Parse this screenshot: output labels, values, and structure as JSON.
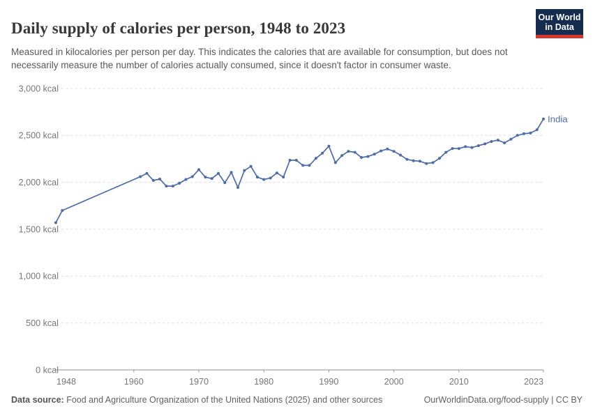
{
  "header": {
    "title": "Daily supply of calories per person, 1948 to 2023",
    "subtitle": "Measured in kilocalories per person per day. This indicates the calories that are available for consumption, but does not necessarily measure the number of calories actually consumed, since it doesn't factor in consumer waste.",
    "logo": {
      "line1": "Our World",
      "line2": "in Data"
    }
  },
  "footer": {
    "source_label": "Data source:",
    "source_text": " Food and Agriculture Organization of the United Nations (2025) and other sources",
    "link": "OurWorldinData.org/food-supply | CC BY"
  },
  "chart_data": {
    "type": "line",
    "title": "Daily supply of calories per person, 1948 to 2023",
    "xlabel": "",
    "ylabel": "",
    "xlim": [
      1948,
      2023
    ],
    "ylim": [
      0,
      3000
    ],
    "grid": "horizontal-dashed",
    "legend_position": "end-of-line",
    "unit": "kcal",
    "x_ticks": [
      {
        "value": 1948,
        "label": "1948"
      },
      {
        "value": 1960,
        "label": "1960"
      },
      {
        "value": 1970,
        "label": "1970"
      },
      {
        "value": 1980,
        "label": "1980"
      },
      {
        "value": 1990,
        "label": "1990"
      },
      {
        "value": 2000,
        "label": "2000"
      },
      {
        "value": 2010,
        "label": "2010"
      },
      {
        "value": 2023,
        "label": "2023"
      }
    ],
    "y_ticks": [
      {
        "value": 0,
        "label": "0 kcal"
      },
      {
        "value": 500,
        "label": "500 kcal"
      },
      {
        "value": 1000,
        "label": "1,000 kcal"
      },
      {
        "value": 1500,
        "label": "1,500 kcal"
      },
      {
        "value": 2000,
        "label": "2,000 kcal"
      },
      {
        "value": 2500,
        "label": "2,500 kcal"
      },
      {
        "value": 3000,
        "label": "3,000 kcal"
      }
    ],
    "interpolated_gap_years": [
      1950,
      1960
    ],
    "series": [
      {
        "name": "India",
        "color": "#4c6ba8",
        "points": [
          [
            1948,
            1570
          ],
          [
            1949,
            1700
          ],
          [
            1961,
            2060
          ],
          [
            1962,
            2095
          ],
          [
            1963,
            2020
          ],
          [
            1964,
            2035
          ],
          [
            1965,
            1960
          ],
          [
            1966,
            1960
          ],
          [
            1967,
            1990
          ],
          [
            1968,
            2030
          ],
          [
            1969,
            2060
          ],
          [
            1970,
            2135
          ],
          [
            1971,
            2055
          ],
          [
            1972,
            2040
          ],
          [
            1973,
            2095
          ],
          [
            1974,
            1995
          ],
          [
            1975,
            2105
          ],
          [
            1976,
            1945
          ],
          [
            1977,
            2125
          ],
          [
            1978,
            2170
          ],
          [
            1979,
            2055
          ],
          [
            1980,
            2030
          ],
          [
            1981,
            2045
          ],
          [
            1982,
            2100
          ],
          [
            1983,
            2055
          ],
          [
            1984,
            2235
          ],
          [
            1985,
            2235
          ],
          [
            1986,
            2180
          ],
          [
            1987,
            2180
          ],
          [
            1988,
            2255
          ],
          [
            1989,
            2310
          ],
          [
            1990,
            2385
          ],
          [
            1991,
            2210
          ],
          [
            1992,
            2285
          ],
          [
            1993,
            2330
          ],
          [
            1994,
            2320
          ],
          [
            1995,
            2265
          ],
          [
            1996,
            2275
          ],
          [
            1997,
            2300
          ],
          [
            1998,
            2335
          ],
          [
            1999,
            2355
          ],
          [
            2000,
            2330
          ],
          [
            2001,
            2290
          ],
          [
            2002,
            2245
          ],
          [
            2003,
            2230
          ],
          [
            2004,
            2225
          ],
          [
            2005,
            2200
          ],
          [
            2006,
            2210
          ],
          [
            2007,
            2255
          ],
          [
            2008,
            2320
          ],
          [
            2009,
            2360
          ],
          [
            2010,
            2360
          ],
          [
            2011,
            2380
          ],
          [
            2012,
            2370
          ],
          [
            2013,
            2390
          ],
          [
            2014,
            2410
          ],
          [
            2015,
            2435
          ],
          [
            2016,
            2450
          ],
          [
            2017,
            2420
          ],
          [
            2018,
            2460
          ],
          [
            2019,
            2500
          ],
          [
            2020,
            2518
          ],
          [
            2021,
            2525
          ],
          [
            2022,
            2560
          ],
          [
            2023,
            2675
          ]
        ]
      }
    ]
  }
}
